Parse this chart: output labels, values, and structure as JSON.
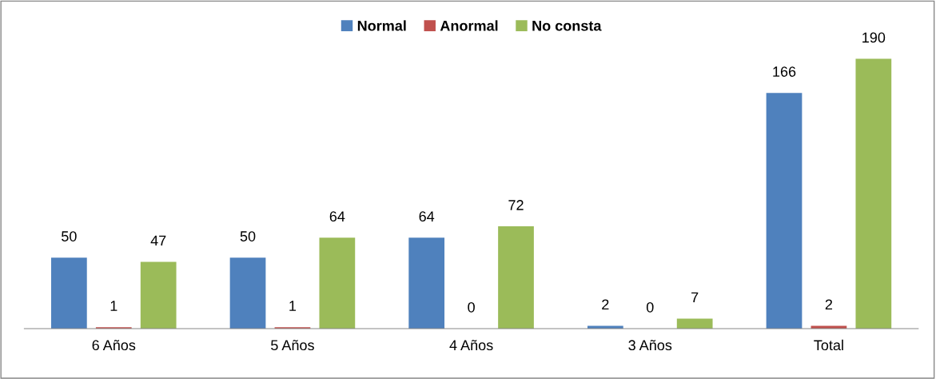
{
  "chart_data": {
    "type": "bar",
    "categories": [
      "6 Años",
      "5 Años",
      "4 Años",
      "3 Años",
      "Total"
    ],
    "series": [
      {
        "name": "Normal",
        "color": "#4f81bd",
        "values": [
          50,
          50,
          64,
          2,
          166
        ]
      },
      {
        "name": "Anormal",
        "color": "#c0504d",
        "values": [
          1,
          1,
          0,
          0,
          2
        ]
      },
      {
        "name": "No consta",
        "color": "#9bbb59",
        "values": [
          47,
          64,
          72,
          7,
          190
        ]
      }
    ],
    "data_labels": true,
    "legend": "top"
  }
}
